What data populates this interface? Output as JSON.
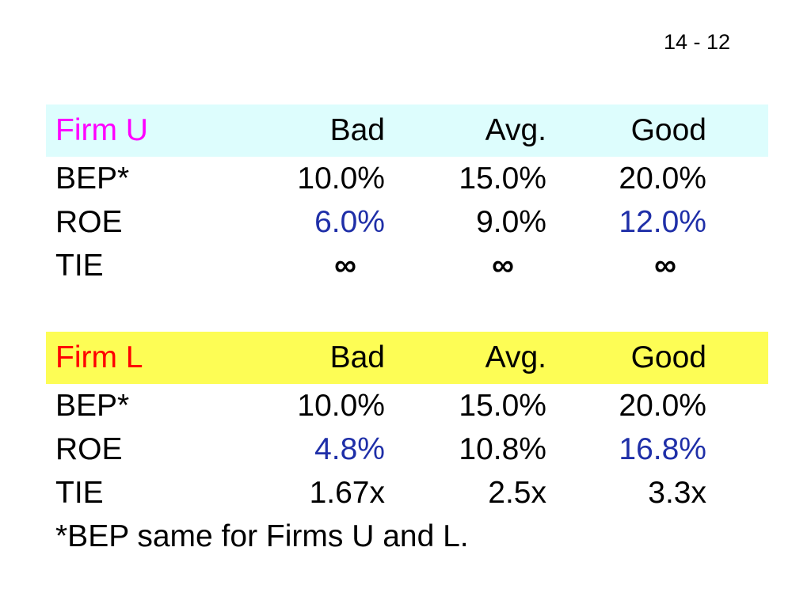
{
  "slide_number": "14 - 12",
  "columns": [
    "Bad",
    "Avg.",
    "Good"
  ],
  "colors": {
    "firm_u_title": "#ff00ff",
    "firm_l_title": "#ff0000",
    "firm_u_header_bg": "#ddfdfd",
    "firm_l_header_bg": "#fdfd55",
    "highlight_value": "#1f2fa8"
  },
  "firm_u": {
    "title": "Firm U",
    "rows": [
      {
        "label": "BEP*",
        "values": [
          "10.0%",
          "15.0%",
          "20.0%"
        ]
      },
      {
        "label": "ROE",
        "values": [
          "6.0%",
          "9.0%",
          "12.0%"
        ]
      },
      {
        "label": "TIE",
        "values": [
          "∞",
          "∞",
          "∞"
        ]
      }
    ]
  },
  "firm_l": {
    "title": "Firm L",
    "rows": [
      {
        "label": "BEP*",
        "values": [
          "10.0%",
          "15.0%",
          "20.0%"
        ]
      },
      {
        "label": "ROE",
        "values": [
          "4.8%",
          "10.8%",
          "16.8%"
        ]
      },
      {
        "label": "TIE",
        "values": [
          "1.67x",
          "2.5x",
          "3.3x"
        ]
      }
    ]
  },
  "footnote": "*BEP same for Firms U and L."
}
